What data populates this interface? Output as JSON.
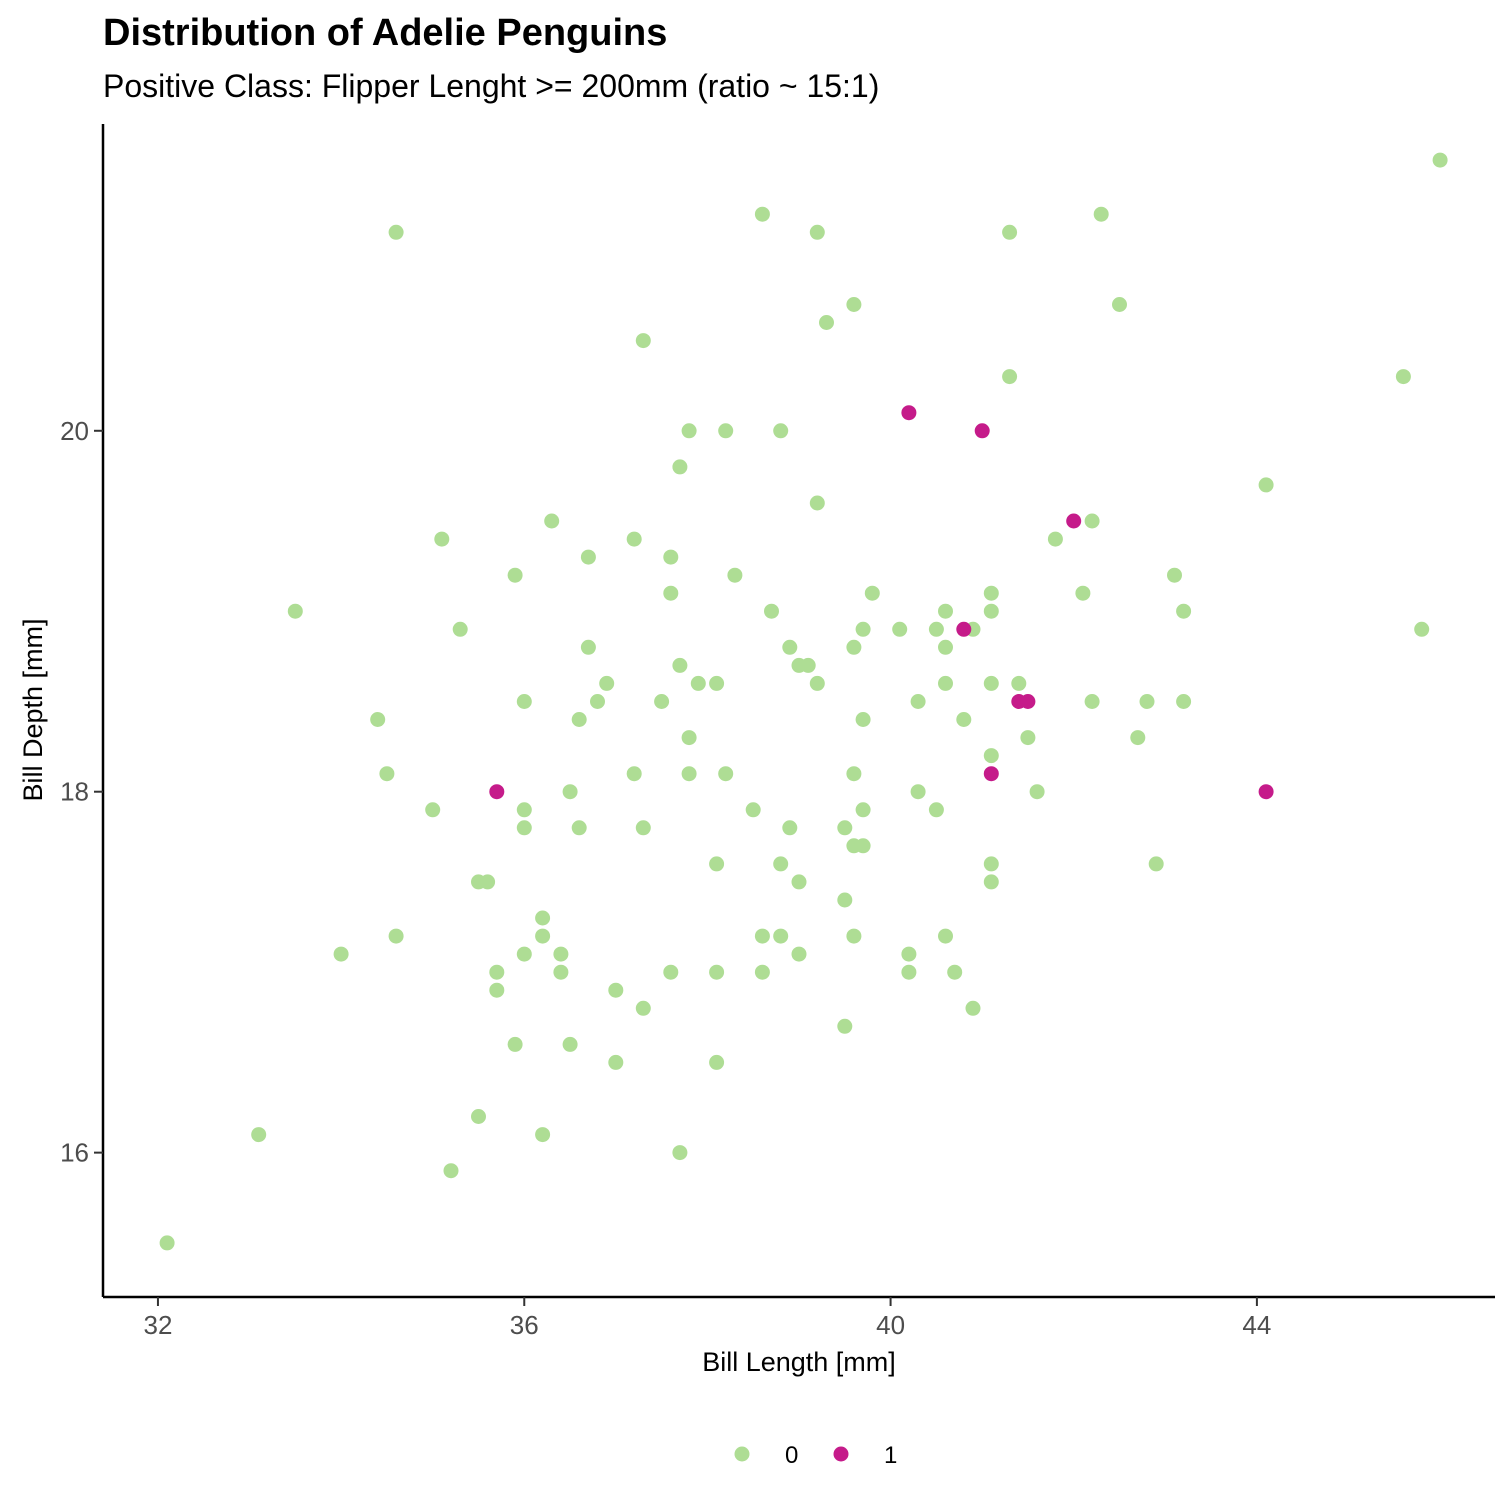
{
  "chart_data": {
    "type": "scatter",
    "title": "Distribution of Adelie Penguins",
    "subtitle": "Positive Class: Flipper Lenght >= 200mm (ratio ~ 15:1)",
    "xlabel": "Bill Length [mm]",
    "ylabel": "Bill Depth [mm]",
    "xlim": [
      31.4,
      46.6
    ],
    "ylim": [
      15.2,
      21.7
    ],
    "xticks": [
      32,
      36,
      40,
      44
    ],
    "yticks": [
      16,
      18,
      20
    ],
    "grid": false,
    "legend_position": "bottom",
    "series": [
      {
        "name": "0",
        "color": "#aedd94",
        "points": [
          [
            32.1,
            15.5
          ],
          [
            33.1,
            16.1
          ],
          [
            33.5,
            19.0
          ],
          [
            34.0,
            17.1
          ],
          [
            34.4,
            18.4
          ],
          [
            34.5,
            18.1
          ],
          [
            34.6,
            21.1
          ],
          [
            34.6,
            17.2
          ],
          [
            35.0,
            17.9
          ],
          [
            35.1,
            19.4
          ],
          [
            35.2,
            15.9
          ],
          [
            35.3,
            18.9
          ],
          [
            35.5,
            17.5
          ],
          [
            35.5,
            16.2
          ],
          [
            35.6,
            17.5
          ],
          [
            35.7,
            17.0
          ],
          [
            35.7,
            16.9
          ],
          [
            35.9,
            19.2
          ],
          [
            35.9,
            16.6
          ],
          [
            36.0,
            18.5
          ],
          [
            36.0,
            17.9
          ],
          [
            36.0,
            17.8
          ],
          [
            36.0,
            17.1
          ],
          [
            36.2,
            17.3
          ],
          [
            36.2,
            17.2
          ],
          [
            36.2,
            16.1
          ],
          [
            36.3,
            19.5
          ],
          [
            36.4,
            17.1
          ],
          [
            36.4,
            17.0
          ],
          [
            36.5,
            18.0
          ],
          [
            36.5,
            16.6
          ],
          [
            36.6,
            18.4
          ],
          [
            36.6,
            17.8
          ],
          [
            36.7,
            19.3
          ],
          [
            36.7,
            18.8
          ],
          [
            36.8,
            18.5
          ],
          [
            36.9,
            18.6
          ],
          [
            37.0,
            16.9
          ],
          [
            37.0,
            16.5
          ],
          [
            37.2,
            19.4
          ],
          [
            37.2,
            18.1
          ],
          [
            37.3,
            20.5
          ],
          [
            37.3,
            17.8
          ],
          [
            37.3,
            16.8
          ],
          [
            37.5,
            18.5
          ],
          [
            37.6,
            19.3
          ],
          [
            37.6,
            19.1
          ],
          [
            37.6,
            17.0
          ],
          [
            37.7,
            19.8
          ],
          [
            37.7,
            18.7
          ],
          [
            37.7,
            16.0
          ],
          [
            37.8,
            20.0
          ],
          [
            37.8,
            18.3
          ],
          [
            37.8,
            18.1
          ],
          [
            37.9,
            18.6
          ],
          [
            38.1,
            18.6
          ],
          [
            38.1,
            17.6
          ],
          [
            38.1,
            17.0
          ],
          [
            38.1,
            16.5
          ],
          [
            38.2,
            20.0
          ],
          [
            38.2,
            18.1
          ],
          [
            38.3,
            19.2
          ],
          [
            38.5,
            17.9
          ],
          [
            38.6,
            21.2
          ],
          [
            38.6,
            17.2
          ],
          [
            38.6,
            17.0
          ],
          [
            38.7,
            19.0
          ],
          [
            38.8,
            20.0
          ],
          [
            38.8,
            17.6
          ],
          [
            38.8,
            17.2
          ],
          [
            38.9,
            18.8
          ],
          [
            38.9,
            17.8
          ],
          [
            39.0,
            18.7
          ],
          [
            39.0,
            17.5
          ],
          [
            39.0,
            17.1
          ],
          [
            39.1,
            18.7
          ],
          [
            39.2,
            21.1
          ],
          [
            39.2,
            19.6
          ],
          [
            39.2,
            18.6
          ],
          [
            39.3,
            20.6
          ],
          [
            39.5,
            17.8
          ],
          [
            39.5,
            17.4
          ],
          [
            39.5,
            16.7
          ],
          [
            39.6,
            20.7
          ],
          [
            39.6,
            18.8
          ],
          [
            39.6,
            18.1
          ],
          [
            39.6,
            17.7
          ],
          [
            39.6,
            17.2
          ],
          [
            39.7,
            18.9
          ],
          [
            39.7,
            18.4
          ],
          [
            39.7,
            17.9
          ],
          [
            39.7,
            17.7
          ],
          [
            39.8,
            19.1
          ],
          [
            40.1,
            18.9
          ],
          [
            40.2,
            17.1
          ],
          [
            40.2,
            17.0
          ],
          [
            40.3,
            18.5
          ],
          [
            40.3,
            18.0
          ],
          [
            40.5,
            18.9
          ],
          [
            40.5,
            17.9
          ],
          [
            40.6,
            19.0
          ],
          [
            40.6,
            18.8
          ],
          [
            40.6,
            18.6
          ],
          [
            40.6,
            17.2
          ],
          [
            40.7,
            17.0
          ],
          [
            40.8,
            18.4
          ],
          [
            40.9,
            18.9
          ],
          [
            40.9,
            16.8
          ],
          [
            41.1,
            19.1
          ],
          [
            41.1,
            19.0
          ],
          [
            41.1,
            18.6
          ],
          [
            41.1,
            18.2
          ],
          [
            41.1,
            17.6
          ],
          [
            41.1,
            17.5
          ],
          [
            41.3,
            21.1
          ],
          [
            41.3,
            20.3
          ],
          [
            41.4,
            18.6
          ],
          [
            41.5,
            18.3
          ],
          [
            41.6,
            18.0
          ],
          [
            41.8,
            19.4
          ],
          [
            42.1,
            19.1
          ],
          [
            42.2,
            19.5
          ],
          [
            42.2,
            18.5
          ],
          [
            42.3,
            21.2
          ],
          [
            42.5,
            20.7
          ],
          [
            42.7,
            18.3
          ],
          [
            42.8,
            18.5
          ],
          [
            42.9,
            17.6
          ],
          [
            43.1,
            19.2
          ],
          [
            43.2,
            19.0
          ],
          [
            43.2,
            18.5
          ],
          [
            44.1,
            19.7
          ],
          [
            45.6,
            20.3
          ],
          [
            45.8,
            18.9
          ],
          [
            46.0,
            21.5
          ]
        ]
      },
      {
        "name": "1",
        "color": "#c51b8a",
        "points": [
          [
            35.7,
            18.0
          ],
          [
            40.2,
            20.1
          ],
          [
            40.8,
            18.9
          ],
          [
            41.0,
            20.0
          ],
          [
            41.1,
            18.1
          ],
          [
            41.4,
            18.5
          ],
          [
            41.5,
            18.5
          ],
          [
            42.0,
            19.5
          ],
          [
            44.1,
            18.0
          ]
        ]
      }
    ]
  }
}
